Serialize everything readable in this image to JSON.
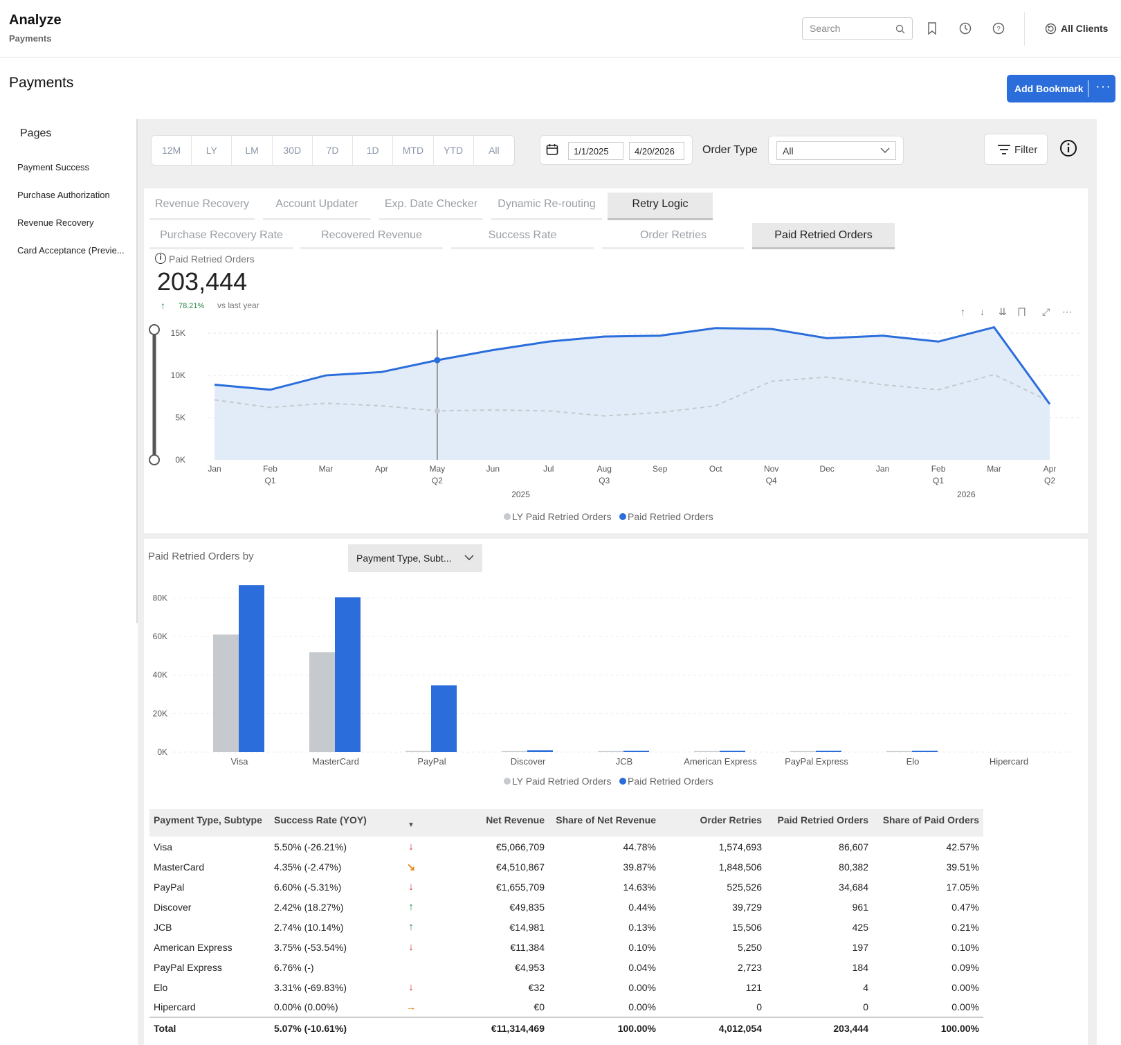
{
  "app": {
    "brand": "Analyze",
    "section": "Payments"
  },
  "header": {
    "search_placeholder": "Search",
    "clients_label": "All Clients"
  },
  "page": {
    "title": "Payments",
    "add_bookmark_label": "Add Bookmark",
    "more_label": "···"
  },
  "sidebar": {
    "heading": "Pages",
    "items": [
      {
        "label": "Payment Success"
      },
      {
        "label": "Purchase Authorization"
      },
      {
        "label": "Revenue Recovery"
      },
      {
        "label": "Card Acceptance (Previe..."
      }
    ]
  },
  "filters": {
    "periods": [
      "12M",
      "LY",
      "LM",
      "30D",
      "7D",
      "1D",
      "MTD",
      "YTD",
      "All"
    ],
    "date_from": "1/1/2025",
    "date_to": "4/20/2026",
    "order_type_label": "Order Type",
    "order_type_value": "All",
    "filter_label": "Filter"
  },
  "tabs_primary": [
    {
      "label": "Revenue Recovery",
      "active": false
    },
    {
      "label": "Account Updater",
      "active": false
    },
    {
      "label": "Exp. Date Checker",
      "active": false
    },
    {
      "label": "Dynamic Re-routing",
      "active": false
    },
    {
      "label": "Retry Logic",
      "active": true
    }
  ],
  "tabs_secondary": [
    {
      "label": "Purchase Recovery Rate",
      "active": false
    },
    {
      "label": "Recovered Revenue",
      "active": false
    },
    {
      "label": "Success Rate",
      "active": false
    },
    {
      "label": "Order Retries",
      "active": false
    },
    {
      "label": "Paid Retried Orders",
      "active": true
    }
  ],
  "kpi": {
    "label": "Paid Retried Orders",
    "value": "203,444",
    "change": "78.21%",
    "comparison": "vs last year"
  },
  "colors": {
    "accent": "#2a6ddb",
    "ly_series": "#c6c9cd",
    "area_fill": "#e1ecf8",
    "up": "#2a8a4a",
    "down": "#d0342c",
    "slight_down": "#e08a1c"
  },
  "chart_data": [
    {
      "type": "area",
      "x": [
        "Jan",
        "Feb",
        "Mar",
        "Apr",
        "May",
        "Jun",
        "Jul",
        "Aug",
        "Sep",
        "Oct",
        "Nov",
        "Dec",
        "Jan",
        "Feb",
        "Mar",
        "Apr"
      ],
      "quarter_labels": [
        "",
        "Q1",
        "",
        "",
        "Q2",
        "",
        "",
        "Q3",
        "",
        "",
        "Q4",
        "",
        "",
        "Q1",
        "",
        "Q2"
      ],
      "year_labels": [
        "2025",
        "2026"
      ],
      "y_ticks": [
        "0K",
        "5K",
        "10K",
        "15K"
      ],
      "ylim": [
        0,
        15500
      ],
      "legend_position": "bottom-center",
      "series": [
        {
          "name": "LY Paid Retried Orders",
          "style": "dashed",
          "values": [
            7100,
            6200,
            6700,
            6400,
            5800,
            5900,
            5800,
            5200,
            5600,
            6400,
            9300,
            9800,
            8900,
            8300,
            10100,
            6900
          ]
        },
        {
          "name": "Paid Retried Orders",
          "style": "solid-area",
          "values": [
            8900,
            8300,
            10000,
            10400,
            11800,
            13000,
            14000,
            14600,
            14700,
            15600,
            15500,
            14400,
            14700,
            14000,
            15700,
            6600
          ]
        }
      ],
      "cursor_index": 4
    },
    {
      "type": "bar",
      "title": "Paid Retried Orders by",
      "categories": [
        "Visa",
        "MasterCard",
        "PayPal",
        "Discover",
        "JCB",
        "American Express",
        "PayPal Express",
        "Elo",
        "Hipercard"
      ],
      "y_ticks": [
        "0K",
        "20K",
        "40K",
        "60K",
        "80K"
      ],
      "ylim": [
        0,
        87000
      ],
      "legend_position": "bottom-center",
      "series": [
        {
          "name": "LY Paid Retried Orders",
          "values": [
            61000,
            51800,
            600,
            300,
            250,
            100,
            80,
            20,
            0
          ]
        },
        {
          "name": "Paid Retried Orders",
          "values": [
            86607,
            80382,
            34684,
            961,
            425,
            197,
            184,
            4,
            0
          ]
        }
      ]
    }
  ],
  "breakdown": {
    "dropdown_value": "Payment Type, Subt..."
  },
  "table": {
    "headers": [
      "Payment Type, Subtype",
      "Success Rate (YOY)",
      "Net Revenue",
      "Share of Net Revenue",
      "Order Retries",
      "Paid Retried Orders",
      "Share of Paid Orders"
    ],
    "rows": [
      {
        "name": "Visa",
        "rate": "5.50% (-26.21%)",
        "trend": "down",
        "net": "€5,066,709",
        "share_net": "44.78%",
        "retries": "1,574,693",
        "paid": "86,607",
        "share_paid": "42.57%"
      },
      {
        "name": "MasterCard",
        "rate": "4.35% (-2.47%)",
        "trend": "slight-down",
        "net": "€4,510,867",
        "share_net": "39.87%",
        "retries": "1,848,506",
        "paid": "80,382",
        "share_paid": "39.51%"
      },
      {
        "name": "PayPal",
        "rate": "6.60% (-5.31%)",
        "trend": "down",
        "net": "€1,655,709",
        "share_net": "14.63%",
        "retries": "525,526",
        "paid": "34,684",
        "share_paid": "17.05%"
      },
      {
        "name": "Discover",
        "rate": "2.42% (18.27%)",
        "trend": "up",
        "net": "€49,835",
        "share_net": "0.44%",
        "retries": "39,729",
        "paid": "961",
        "share_paid": "0.47%"
      },
      {
        "name": "JCB",
        "rate": "2.74% (10.14%)",
        "trend": "up",
        "net": "€14,981",
        "share_net": "0.13%",
        "retries": "15,506",
        "paid": "425",
        "share_paid": "0.21%"
      },
      {
        "name": "American Express",
        "rate": "3.75% (-53.54%)",
        "trend": "down",
        "net": "€11,384",
        "share_net": "0.10%",
        "retries": "5,250",
        "paid": "197",
        "share_paid": "0.10%"
      },
      {
        "name": "PayPal Express",
        "rate": "6.76% (-)",
        "trend": "none",
        "net": "€4,953",
        "share_net": "0.04%",
        "retries": "2,723",
        "paid": "184",
        "share_paid": "0.09%"
      },
      {
        "name": "Elo",
        "rate": "3.31% (-69.83%)",
        "trend": "down",
        "net": "€32",
        "share_net": "0.00%",
        "retries": "121",
        "paid": "4",
        "share_paid": "0.00%"
      },
      {
        "name": "Hipercard",
        "rate": "0.00% (0.00%)",
        "trend": "flat",
        "net": "€0",
        "share_net": "0.00%",
        "retries": "0",
        "paid": "0",
        "share_paid": "0.00%"
      }
    ],
    "total": {
      "name": "Total",
      "rate": "5.07% (-10.61%)",
      "net": "€11,314,469",
      "share_net": "100.00%",
      "retries": "4,012,054",
      "paid": "203,444",
      "share_paid": "100.00%"
    }
  }
}
